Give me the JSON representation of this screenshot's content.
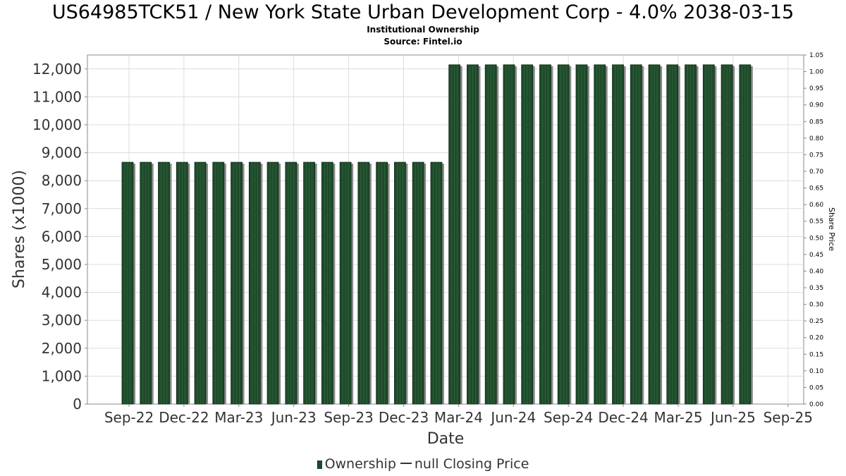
{
  "title": "US64985TCK51 / New York State Urban Development Corp - 4.0% 2038-03-15",
  "subtitle1": "Institutional Ownership",
  "subtitle2": "Source: Fintel.io",
  "legend": {
    "ownership_label": "Ownership",
    "price_label": "null Closing Price"
  },
  "colors": {
    "bar": "#1f4a2b",
    "bar_shadow": "#8a8a8a",
    "grid": "#dcdcdc"
  },
  "chart_data": {
    "type": "bar",
    "xlabel": "Date",
    "ylabel": "Shares (x1000)",
    "y2label": "Share Price",
    "ylim": [
      0,
      12500
    ],
    "y2lim": [
      0,
      1.05
    ],
    "grid": true,
    "legend_position": "bottom",
    "yticks": [
      "0",
      "1,000",
      "2,000",
      "3,000",
      "4,000",
      "5,000",
      "6,000",
      "7,000",
      "8,000",
      "9,000",
      "10,000",
      "11,000",
      "12,000"
    ],
    "y2ticks": [
      "0.00",
      "0.05",
      "0.10",
      "0.15",
      "0.20",
      "0.25",
      "0.30",
      "0.35",
      "0.40",
      "0.45",
      "0.50",
      "0.55",
      "0.60",
      "0.65",
      "0.70",
      "0.75",
      "0.80",
      "0.85",
      "0.90",
      "0.95",
      "1.00",
      "1.05"
    ],
    "xticks": [
      "Sep-22",
      "Dec-22",
      "Mar-23",
      "Jun-23",
      "Sep-23",
      "Dec-23",
      "Mar-24",
      "Jun-24",
      "Sep-24",
      "Dec-24",
      "Mar-25",
      "Jun-25",
      "Sep-25"
    ],
    "series": [
      {
        "name": "Ownership",
        "values": [
          8660,
          8660,
          8660,
          8660,
          8660,
          8660,
          8660,
          8660,
          8660,
          8660,
          8660,
          8660,
          8660,
          8660,
          8660,
          8660,
          8660,
          8660,
          12150,
          12150,
          12150,
          12150,
          12150,
          12150,
          12150,
          12150,
          12150,
          12150,
          12150,
          12150,
          12150,
          12150,
          12150,
          12150,
          12150
        ]
      }
    ]
  }
}
